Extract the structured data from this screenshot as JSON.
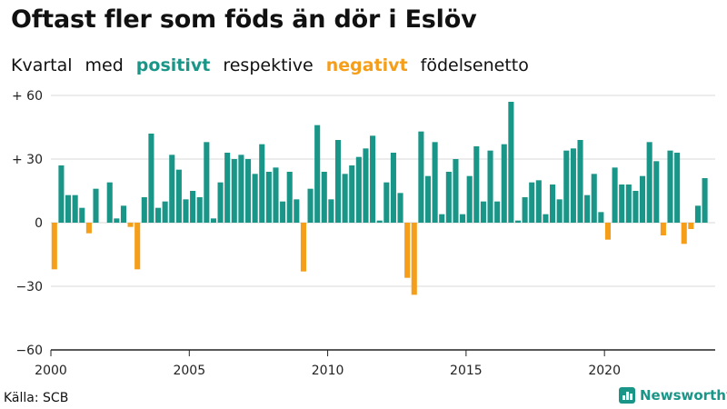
{
  "title": "Oftast fler som föds än dör i Eslöv",
  "subtitle": {
    "part1": "Kvartal",
    "part2": "med",
    "positive": "positivt",
    "part3": "respektive",
    "negative": "negativt",
    "part4": "födelsenetto"
  },
  "colors": {
    "positive": "#1a9688",
    "negative": "#f59e1a",
    "grid": "#d9d9d9",
    "axis": "#222222"
  },
  "source": "Källa: SCB",
  "brand": {
    "name": "Newsworthy",
    "icon": "newsworthy-logo-icon"
  },
  "chart_data": {
    "type": "bar",
    "x_start": "2000 Q1",
    "frequency": "quarter",
    "yticks": [
      60,
      30,
      0,
      -30,
      -60
    ],
    "ytick_labels": [
      "+ 60",
      "+ 30",
      "0",
      "−30",
      "−60"
    ],
    "xticks": [
      2000,
      2005,
      2010,
      2015,
      2020
    ],
    "ylim": [
      -60,
      60
    ],
    "xlim": [
      2000,
      2024
    ],
    "grid": "horizontal",
    "values": [
      -22,
      27,
      13,
      13,
      7,
      -5,
      16,
      0,
      19,
      2,
      8,
      -2,
      -22,
      12,
      42,
      7,
      10,
      32,
      25,
      11,
      15,
      12,
      38,
      2,
      19,
      33,
      30,
      32,
      30,
      23,
      37,
      24,
      26,
      10,
      24,
      11,
      -23,
      16,
      46,
      24,
      11,
      39,
      23,
      27,
      31,
      35,
      41,
      1,
      19,
      33,
      14,
      -26,
      -34,
      43,
      22,
      38,
      4,
      24,
      30,
      4,
      22,
      36,
      10,
      34,
      10,
      37,
      57,
      1,
      12,
      19,
      20,
      4,
      18,
      11,
      34,
      35,
      39,
      13,
      23,
      5,
      -8,
      26,
      18,
      18,
      15,
      22,
      38,
      29,
      -6,
      34,
      33,
      -10,
      -3,
      8,
      21
    ]
  }
}
